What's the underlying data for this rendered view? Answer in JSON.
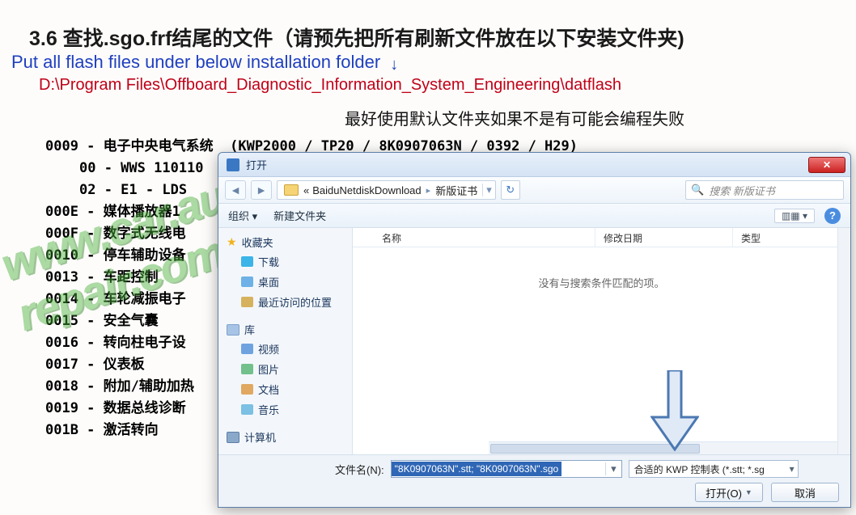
{
  "header": {
    "section_title": "3.6 查找.sgo.frf结尾的文件（请预先把所有刷新文件放在以下安装文件夹)",
    "subtitle_en": "Put all flash files under below installation folder",
    "path_red": "D:\\Program Files\\Offboard_Diagnostic_Information_System_Engineering\\datflash",
    "note_black": "最好使用默认文件夹如果不是有可能会编程失败"
  },
  "colors": {
    "title": "#1a1a1a",
    "blue": "#1f3fbf",
    "red": "#c00018",
    "watermark": "#49b23a",
    "dialog_border": "#5d7ea8",
    "selection_bg": "#2f66b5",
    "close_btn": "#c22222"
  },
  "modules": [
    {
      "code": "0009",
      "text": "电子中央电气系统  (KWP2000 / TP20 / 8K0907063N / 0392 / H29)",
      "sub": false
    },
    {
      "code": "00",
      "text": "WWS 110110",
      "sub": true
    },
    {
      "code": "02",
      "text": "E1 - LDS",
      "sub": true
    },
    {
      "code": "000E",
      "text": "媒体播放器1",
      "sub": false
    },
    {
      "code": "000F",
      "text": "数字式无线电",
      "sub": false
    },
    {
      "code": "0010",
      "text": "停车辅助设备",
      "sub": false
    },
    {
      "code": "0013",
      "text": "车距控制",
      "sub": false
    },
    {
      "code": "0014",
      "text": "车轮减振电子",
      "sub": false
    },
    {
      "code": "0015",
      "text": "安全气囊",
      "sub": false
    },
    {
      "code": "0016",
      "text": "转向柱电子设",
      "sub": false
    },
    {
      "code": "0017",
      "text": "仪表板",
      "sub": false
    },
    {
      "code": "0018",
      "text": "附加/辅助加热",
      "sub": false
    },
    {
      "code": "0019",
      "text": "数据总线诊断",
      "sub": false
    },
    {
      "code": "001B",
      "text": "激活转向",
      "sub": false
    }
  ],
  "watermark": "www.car.auto-repair.com",
  "dialog": {
    "title": "打开",
    "breadcrumb": {
      "sep1": "«",
      "part1": "BaiduNetdiskDownload",
      "sep2": "▸",
      "part2": "新版证书"
    },
    "search_placeholder": "搜索 新版证书",
    "toolbar": {
      "organize": "组织 ▾",
      "newfolder": "新建文件夹",
      "view": "▥▦ ▾"
    },
    "sidebar": {
      "fav_header": "收藏夹",
      "fav_items": [
        {
          "icon": "ico-dl",
          "label": "下载"
        },
        {
          "icon": "ico-desk",
          "label": "桌面"
        },
        {
          "icon": "ico-recent",
          "label": "最近访问的位置"
        }
      ],
      "lib_header": "库",
      "lib_items": [
        {
          "icon": "ico-vid",
          "label": "视频"
        },
        {
          "icon": "ico-pic",
          "label": "图片"
        },
        {
          "icon": "ico-doc",
          "label": "文档"
        },
        {
          "icon": "ico-mus",
          "label": "音乐"
        }
      ],
      "pc_header": "计算机"
    },
    "columns": {
      "name": "名称",
      "date": "修改日期",
      "type": "类型"
    },
    "empty": "没有与搜索条件匹配的项。",
    "filename_label": "文件名(N):",
    "filename_value": "\"8K0907063N\".stt; \"8K0907063N\".sgo",
    "filter": "合适的 KWP 控制表 (*.stt; *.sg",
    "open_btn": "打开(O)",
    "cancel_btn": "取消"
  }
}
